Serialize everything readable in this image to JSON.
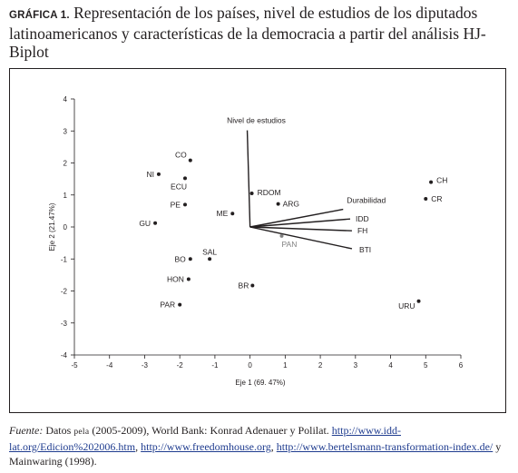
{
  "figure": {
    "label": "GRÁFICA 1.",
    "title": "Representación de los países, nivel de estudios de los diputados latinoamericanos y características de la democracia a partir del análisis HJ-Biplot"
  },
  "chart_data": {
    "type": "scatter",
    "xlabel": "Eje 1 (69. 47%)",
    "ylabel": "Eje 2 (21.47%)",
    "xlim": [
      -5,
      6
    ],
    "ylim": [
      -4,
      4
    ],
    "xticks": [
      -5,
      -4,
      -3,
      -2,
      -1,
      0,
      1,
      2,
      3,
      4,
      5,
      6
    ],
    "yticks": [
      -4,
      -3,
      -2,
      -1,
      0,
      1,
      2,
      3,
      4
    ],
    "grid": false,
    "points": [
      {
        "label": "CO",
        "x": -1.7,
        "y": 2.08
      },
      {
        "label": "NI",
        "x": -2.6,
        "y": 1.65
      },
      {
        "label": "ECU",
        "x": -1.85,
        "y": 1.52
      },
      {
        "label": "PE",
        "x": -1.85,
        "y": 0.7
      },
      {
        "label": "ME",
        "x": -0.5,
        "y": 0.42
      },
      {
        "label": "GU",
        "x": -2.7,
        "y": 0.12
      },
      {
        "label": "SAL",
        "x": -1.15,
        "y": -1.0
      },
      {
        "label": "BO",
        "x": -1.7,
        "y": -1.0
      },
      {
        "label": "HON",
        "x": -1.75,
        "y": -1.63
      },
      {
        "label": "BR",
        "x": 0.07,
        "y": -1.83
      },
      {
        "label": "PAR",
        "x": -2.0,
        "y": -2.43
      },
      {
        "label": "RDOM",
        "x": 0.05,
        "y": 1.05
      },
      {
        "label": "ARG",
        "x": 0.8,
        "y": 0.72
      },
      {
        "label": "PAN",
        "x": 0.9,
        "y": -0.28
      },
      {
        "label": "CH",
        "x": 5.15,
        "y": 1.4
      },
      {
        "label": "CR",
        "x": 5.0,
        "y": 0.88
      },
      {
        "label": "URU",
        "x": 4.8,
        "y": -2.32
      }
    ],
    "vectors": [
      {
        "label": "Nivel de estudios",
        "x": -0.08,
        "y": 3.02
      },
      {
        "label": "Durabilidad",
        "x": 2.65,
        "y": 0.55
      },
      {
        "label": "IDD",
        "x": 2.85,
        "y": 0.25
      },
      {
        "label": "FH",
        "x": 2.9,
        "y": -0.12
      },
      {
        "label": "BTI",
        "x": 2.9,
        "y": -0.68
      }
    ]
  },
  "footer": {
    "source_label": "Fuente:",
    "text_1": "Datos",
    "pela": "pela",
    "text_2": "(2005-2009), World Bank: Konrad Adenauer y Polilat.",
    "link_1": "http://www.idd-lat.org/Edicion%202006.htm",
    "sep_1": ",",
    "link_2": "http://www.freedomhouse.org",
    "sep_2": ",",
    "link_3": "http://www.bertelsmann-transformation-index.de/",
    "text_3": "y Mainwaring (1998)."
  }
}
